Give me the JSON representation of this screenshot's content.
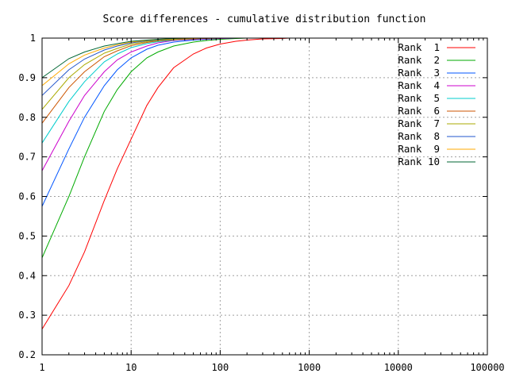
{
  "chart_data": {
    "type": "line",
    "title": "Score differences - cumulative distribution function",
    "xlabel": "",
    "ylabel": "",
    "x_scale": "log",
    "xlim": [
      1,
      100000
    ],
    "ylim": [
      0.2,
      1
    ],
    "x_ticks": [
      1,
      10,
      100,
      1000,
      10000,
      100000
    ],
    "x_tick_labels": [
      "1",
      "10",
      "100",
      "1000",
      "10000",
      "100000"
    ],
    "y_ticks": [
      0.2,
      0.3,
      0.4,
      0.5,
      0.6,
      0.7,
      0.8,
      0.9,
      1
    ],
    "y_tick_labels": [
      "0.2",
      "0.3",
      "0.4",
      "0.5",
      "0.6",
      "0.7",
      "0.8",
      "0.9",
      "1"
    ],
    "grid": true,
    "legend_position": "top-right",
    "x": [
      1,
      2,
      3,
      5,
      7,
      10,
      15,
      20,
      30,
      50,
      70,
      100,
      150,
      200,
      300,
      500,
      600
    ],
    "series": [
      {
        "name": "Rank  1",
        "color": "#ff0000",
        "values": [
          0.265,
          0.375,
          0.46,
          0.59,
          0.67,
          0.745,
          0.83,
          0.875,
          0.925,
          0.96,
          0.975,
          0.985,
          0.992,
          0.995,
          0.998,
          0.999,
          1.0
        ]
      },
      {
        "name": "Rank  2",
        "color": "#00aa00",
        "values": [
          0.445,
          0.6,
          0.7,
          0.815,
          0.87,
          0.915,
          0.95,
          0.965,
          0.98,
          0.99,
          0.994,
          0.997,
          0.999,
          1.0,
          1.0,
          1.0,
          1.0
        ]
      },
      {
        "name": "Rank  3",
        "color": "#0055ff",
        "values": [
          0.575,
          0.72,
          0.8,
          0.88,
          0.92,
          0.95,
          0.972,
          0.982,
          0.99,
          0.995,
          0.997,
          0.999,
          1.0,
          1.0,
          1.0,
          1.0,
          1.0
        ]
      },
      {
        "name": "Rank  4",
        "color": "#cc00cc",
        "values": [
          0.665,
          0.79,
          0.855,
          0.915,
          0.945,
          0.965,
          0.98,
          0.988,
          0.994,
          0.997,
          0.998,
          0.999,
          1.0,
          1.0,
          1.0,
          1.0,
          1.0
        ]
      },
      {
        "name": "Rank  5",
        "color": "#00cccc",
        "values": [
          0.735,
          0.84,
          0.89,
          0.94,
          0.96,
          0.976,
          0.986,
          0.991,
          0.995,
          0.998,
          0.999,
          1.0,
          1.0,
          1.0,
          1.0,
          1.0,
          1.0
        ]
      },
      {
        "name": "Rank  6",
        "color": "#cc5500",
        "values": [
          0.785,
          0.875,
          0.915,
          0.953,
          0.968,
          0.981,
          0.989,
          0.993,
          0.996,
          0.998,
          0.999,
          1.0,
          1.0,
          1.0,
          1.0,
          1.0,
          1.0
        ]
      },
      {
        "name": "Rank  7",
        "color": "#aaaa00",
        "values": [
          0.82,
          0.9,
          0.933,
          0.962,
          0.974,
          0.985,
          0.991,
          0.994,
          0.997,
          0.999,
          1.0,
          1.0,
          1.0,
          1.0,
          1.0,
          1.0,
          1.0
        ]
      },
      {
        "name": "Rank  8",
        "color": "#2255cc",
        "values": [
          0.855,
          0.92,
          0.947,
          0.97,
          0.98,
          0.988,
          0.993,
          0.995,
          0.998,
          0.999,
          1.0,
          1.0,
          1.0,
          1.0,
          1.0,
          1.0,
          1.0
        ]
      },
      {
        "name": "Rank  9",
        "color": "#ffaa00",
        "values": [
          0.88,
          0.935,
          0.957,
          0.975,
          0.983,
          0.99,
          0.994,
          0.996,
          0.998,
          0.999,
          1.0,
          1.0,
          1.0,
          1.0,
          1.0,
          1.0,
          1.0
        ]
      },
      {
        "name": "Rank 10",
        "color": "#006633",
        "values": [
          0.9,
          0.948,
          0.965,
          0.98,
          0.986,
          0.992,
          0.995,
          0.997,
          0.999,
          1.0,
          1.0,
          1.0,
          1.0,
          1.0,
          1.0,
          1.0,
          1.0
        ]
      }
    ]
  }
}
